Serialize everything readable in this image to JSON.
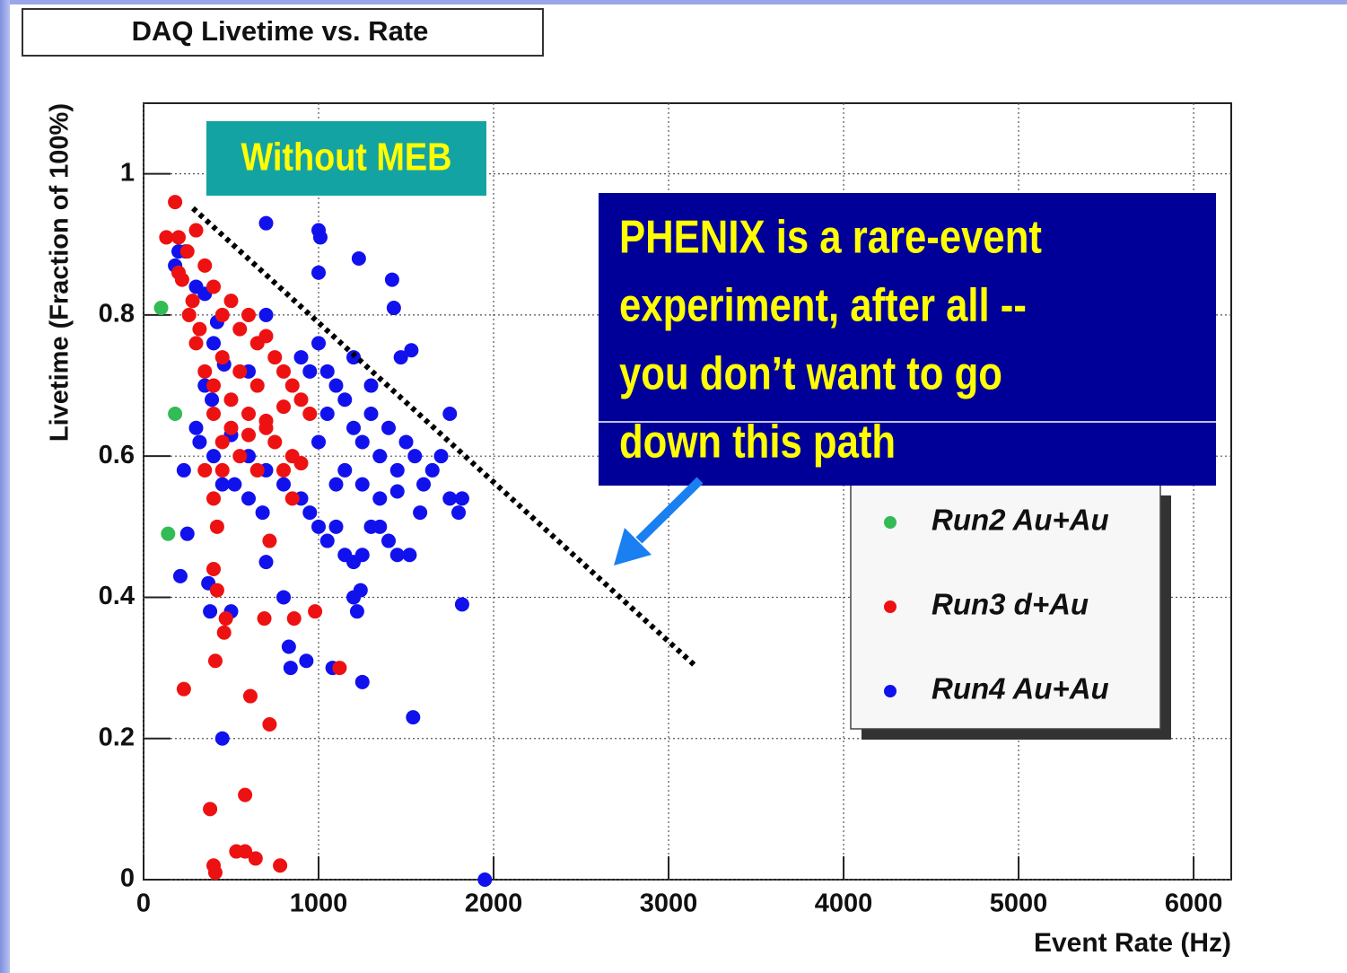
{
  "chart_data": {
    "type": "scatter",
    "title": "DAQ Livetime vs. Rate",
    "xlabel": "Event Rate (Hz)",
    "ylabel": "Livetime (Fraction of 100%)",
    "xlim": [
      0,
      6215
    ],
    "ylim": [
      0,
      1.1
    ],
    "xticks": [
      0,
      1000,
      2000,
      3000,
      4000,
      5000,
      6000
    ],
    "yticks": [
      0,
      0.2,
      0.4,
      0.6,
      0.8,
      1
    ],
    "grid": true,
    "series": [
      {
        "name": "Run2 Au+Au",
        "color": "#33bb55",
        "x": [
          100,
          180,
          140
        ],
        "values": [
          0.81,
          0.66,
          0.49
        ]
      },
      {
        "name": "Run3 d+Au",
        "color": "#ee1111",
        "x": [
          180,
          130,
          200,
          250,
          300,
          220,
          280,
          350,
          400,
          450,
          500,
          550,
          600,
          650,
          700,
          750,
          800,
          850,
          900,
          950,
          300,
          350,
          400,
          450,
          500,
          550,
          600,
          650,
          700,
          750,
          800,
          850,
          900,
          400,
          450,
          500,
          550,
          600,
          650,
          700,
          350,
          450,
          400,
          420,
          800,
          850,
          720,
          400,
          420,
          470,
          460,
          690,
          860,
          980,
          1120,
          410,
          230,
          610,
          720,
          380,
          580,
          400,
          410,
          530,
          580,
          640,
          780,
          200,
          260,
          320
        ],
        "values": [
          0.96,
          0.91,
          0.91,
          0.89,
          0.92,
          0.85,
          0.82,
          0.87,
          0.84,
          0.8,
          0.82,
          0.78,
          0.8,
          0.76,
          0.77,
          0.74,
          0.72,
          0.7,
          0.68,
          0.66,
          0.76,
          0.72,
          0.7,
          0.74,
          0.68,
          0.72,
          0.66,
          0.7,
          0.64,
          0.62,
          0.67,
          0.6,
          0.59,
          0.66,
          0.62,
          0.64,
          0.6,
          0.63,
          0.58,
          0.65,
          0.58,
          0.58,
          0.54,
          0.5,
          0.58,
          0.54,
          0.48,
          0.44,
          0.41,
          0.37,
          0.35,
          0.37,
          0.37,
          0.38,
          0.3,
          0.31,
          0.27,
          0.26,
          0.22,
          0.1,
          0.12,
          0.02,
          0.01,
          0.04,
          0.04,
          0.03,
          0.02,
          0.86,
          0.8,
          0.78
        ]
      },
      {
        "name": "Run4 Au+Au",
        "color": "#1111ee",
        "x": [
          700,
          1000,
          1010,
          1000,
          1230,
          1420,
          1430,
          1530,
          1470,
          200,
          180,
          240,
          300,
          350,
          420,
          400,
          350,
          460,
          390,
          500,
          300,
          320,
          230,
          400,
          450,
          520,
          600,
          680,
          600,
          700,
          800,
          900,
          950,
          1000,
          1050,
          1100,
          1150,
          1200,
          1250,
          1300,
          1350,
          1400,
          1450,
          1520,
          1000,
          1050,
          1100,
          1150,
          1200,
          1250,
          1300,
          1350,
          1400,
          1450,
          1500,
          1550,
          1600,
          1650,
          1700,
          1750,
          1800,
          1820,
          1750,
          1100,
          1150,
          1250,
          1350,
          1450,
          1580,
          900,
          950,
          1000,
          1050,
          1200,
          1300,
          250,
          210,
          370,
          380,
          500,
          700,
          800,
          1200,
          1220,
          1240,
          830,
          840,
          930,
          1080,
          1250,
          1540,
          450,
          1950,
          1820,
          600,
          700
        ],
        "values": [
          0.93,
          0.92,
          0.91,
          0.86,
          0.88,
          0.85,
          0.81,
          0.75,
          0.74,
          0.89,
          0.87,
          0.89,
          0.84,
          0.83,
          0.79,
          0.76,
          0.7,
          0.73,
          0.68,
          0.63,
          0.64,
          0.62,
          0.58,
          0.6,
          0.56,
          0.56,
          0.54,
          0.52,
          0.6,
          0.58,
          0.56,
          0.54,
          0.52,
          0.5,
          0.48,
          0.5,
          0.46,
          0.45,
          0.46,
          0.5,
          0.5,
          0.48,
          0.46,
          0.46,
          0.62,
          0.66,
          0.7,
          0.68,
          0.64,
          0.62,
          0.66,
          0.6,
          0.64,
          0.58,
          0.62,
          0.6,
          0.56,
          0.58,
          0.6,
          0.54,
          0.52,
          0.54,
          0.66,
          0.56,
          0.58,
          0.56,
          0.54,
          0.55,
          0.52,
          0.74,
          0.72,
          0.76,
          0.72,
          0.74,
          0.7,
          0.49,
          0.43,
          0.42,
          0.38,
          0.38,
          0.45,
          0.4,
          0.4,
          0.38,
          0.41,
          0.33,
          0.3,
          0.31,
          0.3,
          0.28,
          0.23,
          0.2,
          0.0,
          0.39,
          0.72,
          0.8
        ]
      }
    ],
    "annotations": [
      {
        "text": "Without MEB"
      },
      {
        "lines": [
          "PHENIX is a rare-event",
          "experiment, after all --",
          "you don’t want to go",
          "down this path"
        ]
      }
    ]
  }
}
